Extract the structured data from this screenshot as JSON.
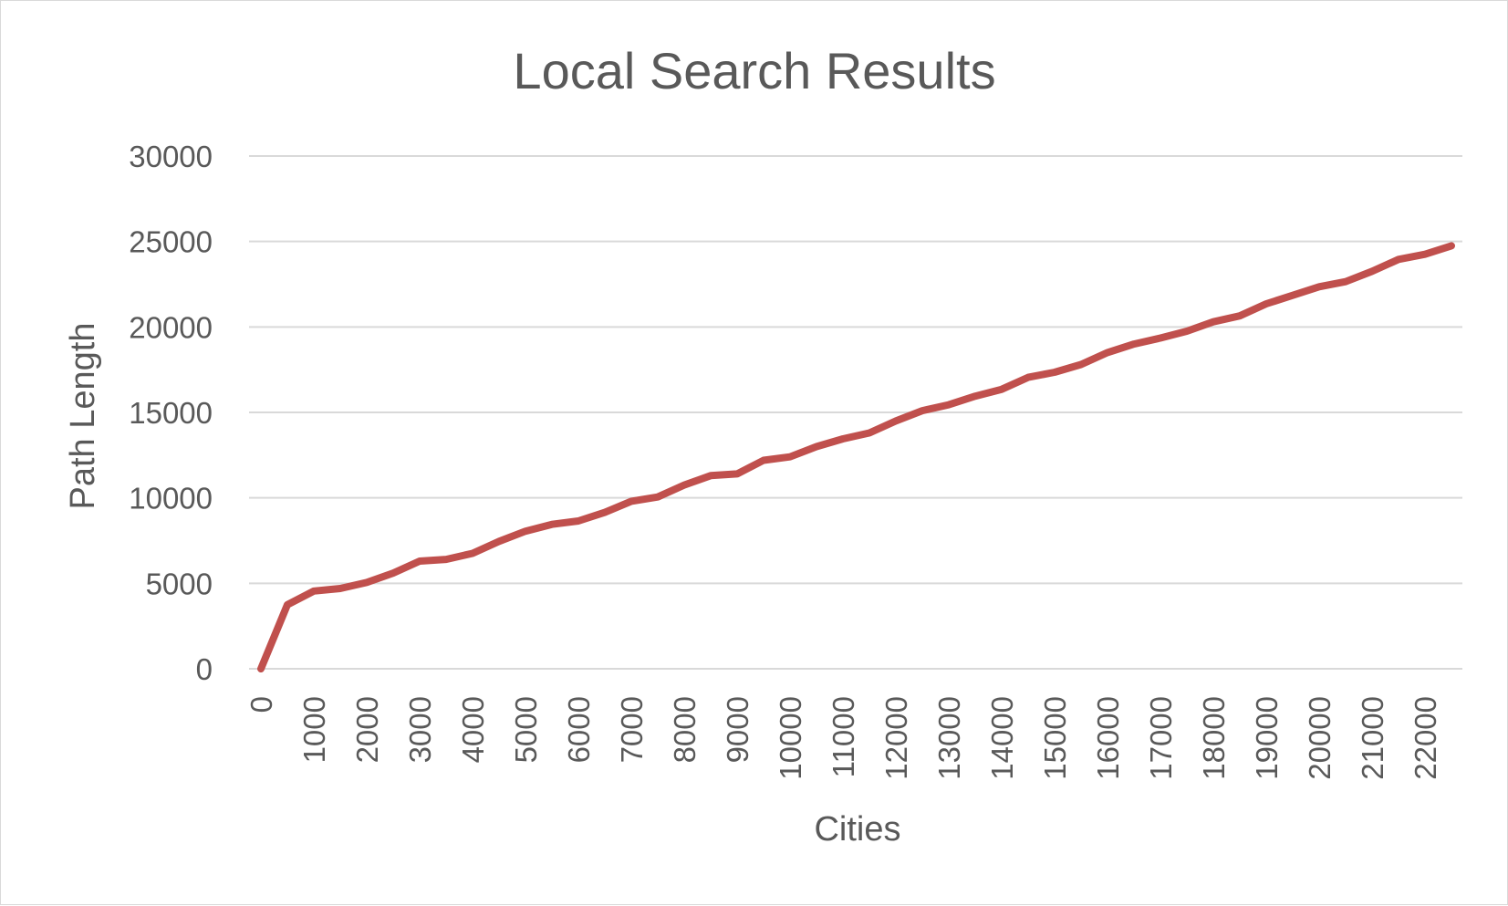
{
  "chart_data": {
    "type": "line",
    "title": "Local Search Results",
    "xlabel": "Cities",
    "ylabel": "Path Length",
    "ylim": [
      0,
      30000
    ],
    "yticks": [
      0,
      5000,
      10000,
      15000,
      20000,
      25000,
      30000
    ],
    "ytick_labels": [
      "0",
      "5000",
      "10000",
      "15000",
      "20000",
      "25000",
      "30000"
    ],
    "xticks": [
      0,
      1000,
      2000,
      3000,
      4000,
      5000,
      6000,
      7000,
      8000,
      9000,
      10000,
      11000,
      12000,
      13000,
      14000,
      15000,
      16000,
      17000,
      18000,
      19000,
      20000,
      21000,
      22000
    ],
    "xtick_labels": [
      "0",
      "1000",
      "2000",
      "3000",
      "4000",
      "5000",
      "6000",
      "7000",
      "8000",
      "9000",
      "10000",
      "11000",
      "12000",
      "13000",
      "14000",
      "15000",
      "16000",
      "17000",
      "18000",
      "19000",
      "20000",
      "21000",
      "22000"
    ],
    "grid": true,
    "legend": "none",
    "series_color": "#c0504d",
    "series": [
      {
        "x": [
          0,
          500,
          1000,
          1500,
          2000,
          2500,
          3000,
          3500,
          4000,
          4500,
          5000,
          5500,
          6000,
          6500,
          7000,
          7500,
          8000,
          8500,
          9000,
          9500,
          10000,
          10500,
          11000,
          11500,
          12000,
          12500,
          13000,
          13500,
          14000,
          14500,
          15000,
          15500,
          16000,
          16500,
          17000,
          17500,
          18000,
          18500,
          19000,
          19500,
          20000,
          20500,
          21000,
          21500,
          22000,
          22500
        ],
        "values": [
          0,
          3750,
          4550,
          4700,
          5050,
          5600,
          6300,
          6400,
          6750,
          7450,
          8050,
          8450,
          8650,
          9150,
          9800,
          10050,
          10750,
          11300,
          11400,
          12200,
          12400,
          13000,
          13450,
          13800,
          14500,
          15100,
          15450,
          15950,
          16350,
          17050,
          17350,
          17800,
          18500,
          19000,
          19350,
          19750,
          20300,
          20650,
          21350,
          21850,
          22350,
          22650,
          23250,
          23950,
          24250,
          24750
        ]
      }
    ]
  }
}
